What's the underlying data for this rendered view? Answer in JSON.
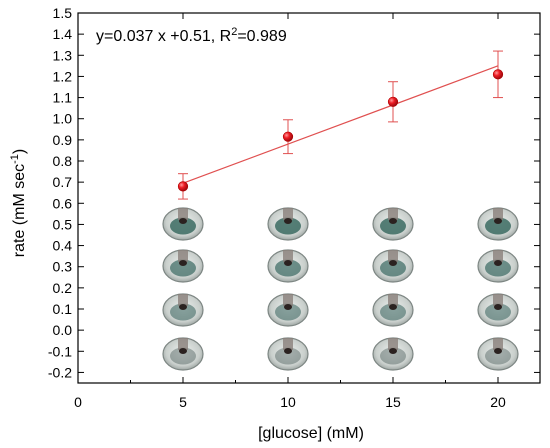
{
  "chart_data": {
    "type": "scatter",
    "xlabel": "[glucose] (mM)",
    "ylabel": {
      "main": "rate (mM sec",
      "sup": "-1",
      "tail": ")"
    },
    "xlim": [
      0,
      22
    ],
    "ylim": [
      -0.25,
      1.5
    ],
    "x_ticks": [
      0,
      5,
      10,
      15,
      20
    ],
    "y_ticks": [
      -0.2,
      -0.1,
      0.0,
      0.1,
      0.2,
      0.3,
      0.4,
      0.5,
      0.6,
      0.7,
      0.8,
      0.9,
      1.0,
      1.1,
      1.2,
      1.3,
      1.4,
      1.5
    ],
    "y_tick_labels": [
      "-0.2",
      "-0.1",
      "0.0",
      "0.1",
      "0.2",
      "0.3",
      "0.4",
      "0.5",
      "0.6",
      "0.7",
      "0.8",
      "0.9",
      "1.0",
      "1.1",
      "1.2",
      "1.3",
      "1.4",
      "1.5"
    ],
    "series": [
      {
        "x": [
          5,
          10,
          15,
          20
        ],
        "y": [
          0.68,
          0.915,
          1.08,
          1.21
        ],
        "error": [
          0.06,
          0.08,
          0.095,
          0.11
        ],
        "marker_color": "#e8141b"
      }
    ],
    "fit_line": {
      "x": [
        5,
        20
      ],
      "y": [
        0.695,
        1.25
      ],
      "color": "#e05050"
    },
    "annotation": {
      "prefix": "y=0.037 x +0.51, R",
      "sup": "2",
      "suffix": "=0.989"
    },
    "grid": false,
    "legend": "none",
    "inset_images": {
      "description_kind": "droplet photographs",
      "columns_x": [
        5,
        10,
        15,
        20
      ],
      "rows": 4,
      "well_colors": [
        "#3b6b61",
        "#3f6c66",
        "#476d68",
        "#5a6a68"
      ]
    }
  }
}
